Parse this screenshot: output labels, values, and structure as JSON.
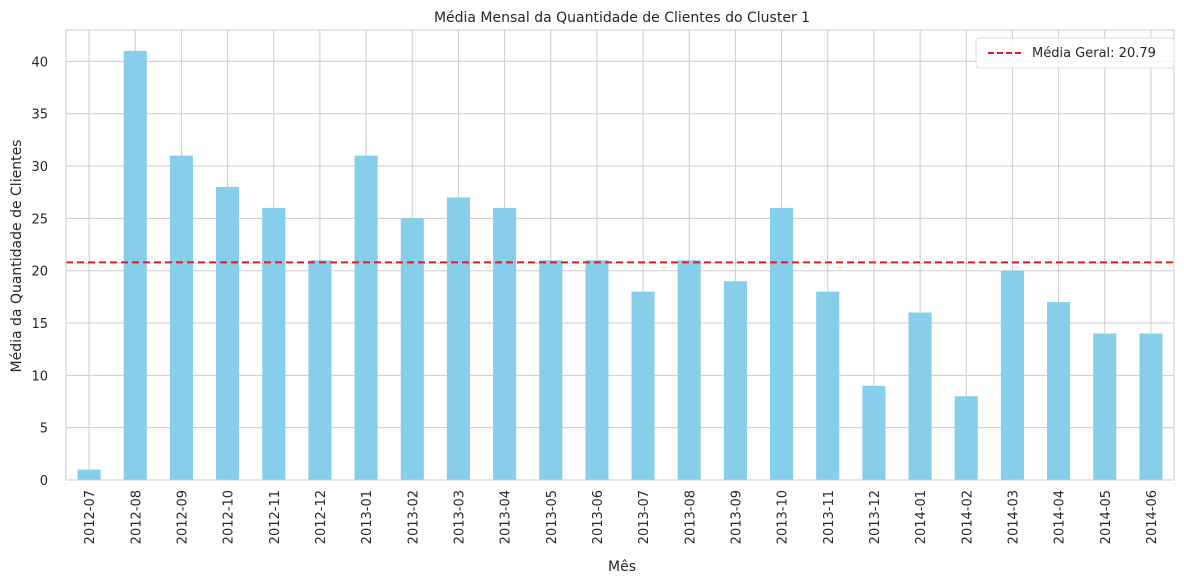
{
  "chart_data": {
    "type": "bar",
    "title": "Média Mensal da Quantidade de Clientes do Cluster 1",
    "xlabel": "Mês",
    "ylabel": "Média da Quantidade de Clientes",
    "categories": [
      "2012-07",
      "2012-08",
      "2012-09",
      "2012-10",
      "2012-11",
      "2012-12",
      "2013-01",
      "2013-02",
      "2013-03",
      "2013-04",
      "2013-05",
      "2013-06",
      "2013-07",
      "2013-08",
      "2013-09",
      "2013-10",
      "2013-11",
      "2013-12",
      "2014-01",
      "2014-02",
      "2014-03",
      "2014-04",
      "2014-05",
      "2014-06"
    ],
    "values": [
      1,
      41,
      31,
      28,
      26,
      21,
      31,
      25,
      27,
      26,
      21,
      21,
      18,
      21,
      19,
      26,
      18,
      9,
      16,
      8,
      20,
      17,
      14,
      14
    ],
    "ylim": [
      0,
      43
    ],
    "yticks": [
      0,
      5,
      10,
      15,
      20,
      25,
      30,
      35,
      40
    ],
    "grid": true,
    "bar_color": "#87ceeb",
    "reference_line": {
      "value": 20.79,
      "label": "Média Geral: 20.79",
      "color": "#e31a1c",
      "style": "dashed"
    },
    "legend_position": "top-right"
  }
}
